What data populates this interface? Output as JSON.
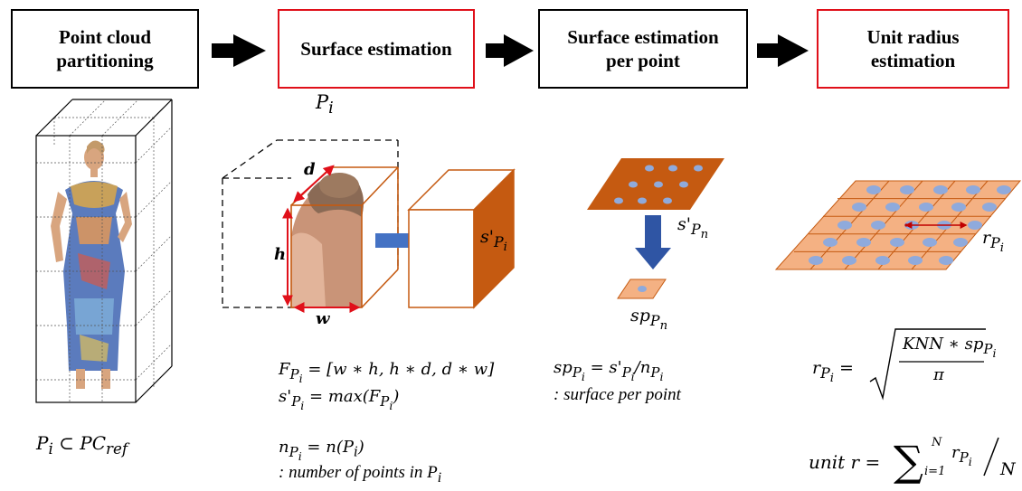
{
  "pipeline": {
    "steps": [
      {
        "label": "Point cloud partitioning",
        "line1": "Point cloud",
        "line2": "partitioning",
        "border": "black"
      },
      {
        "label": "Surface estimation",
        "border": "red"
      },
      {
        "label": "Surface estimation per point",
        "line1": "Surface estimation",
        "line2": "per point",
        "border": "black"
      },
      {
        "label": "Unit radius estimation",
        "line1": "Unit radius",
        "line2": "estimation",
        "border": "red"
      }
    ]
  },
  "colors": {
    "surface_orange": "#c55a11",
    "tile_fill": "#f4b183",
    "point_blue": "#8faadc",
    "arrow_blue": "#4472c4",
    "dimension_red": "#e0101a",
    "cube_edge": "#c55a11"
  },
  "panel1": {
    "formula": "Pi ⊂ PCref"
  },
  "panel2": {
    "cube_label": "Pi",
    "dim_d": "d",
    "dim_h": "h",
    "dim_w": "w",
    "surface_label": "s'Pi",
    "formula_f": "FPi = [w ∗ h, h ∗ d, d ∗ w]",
    "formula_s": "s'Pi = max(FPi)",
    "formula_n": "nPi = n(Pi)",
    "note": ": number of points in Pi"
  },
  "panel3": {
    "surface_label": "s'Pn",
    "point_label": "spPn",
    "formula": "spPi = s'Pi/nPi",
    "note": ": surface per point"
  },
  "panel4": {
    "radius_label": "rPi",
    "formula_r": "rPi = √(KNN ∗ spPi / π)",
    "formula_unit": "unit r = Σ i=1..N rPi / N"
  }
}
